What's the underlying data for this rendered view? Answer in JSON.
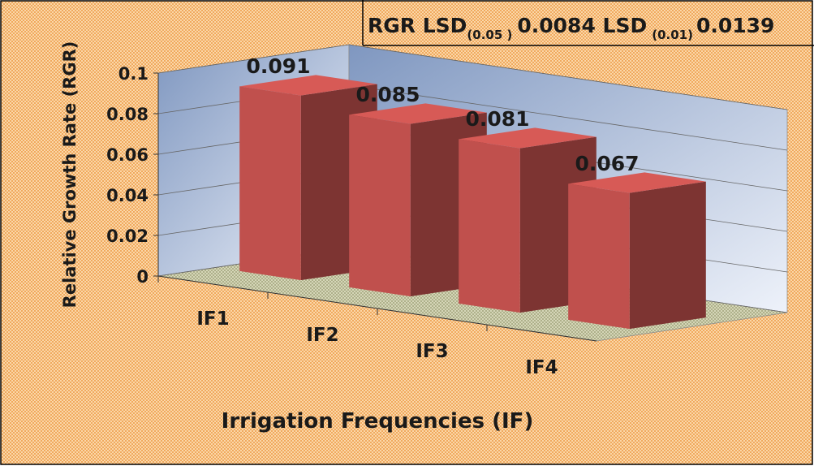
{
  "chart_data": {
    "type": "bar3d",
    "annotation": [
      "RGR LSD",
      "(0.05 )",
      "0.0084 LSD",
      "(0.01)",
      "0.0139"
    ],
    "x_label": "Irrigation Frequencies (IF)",
    "y_label": "Relative Growth Rate (RGR)",
    "categories": [
      "IF1",
      "IF2",
      "IF3",
      "IF4"
    ],
    "values": [
      0.091,
      0.085,
      0.081,
      0.067
    ],
    "color": "#c0504d",
    "ylim": [
      0,
      0.1
    ],
    "yticks": [
      0,
      0.02,
      0.04,
      0.06,
      0.08,
      0.1
    ],
    "grid": true
  }
}
